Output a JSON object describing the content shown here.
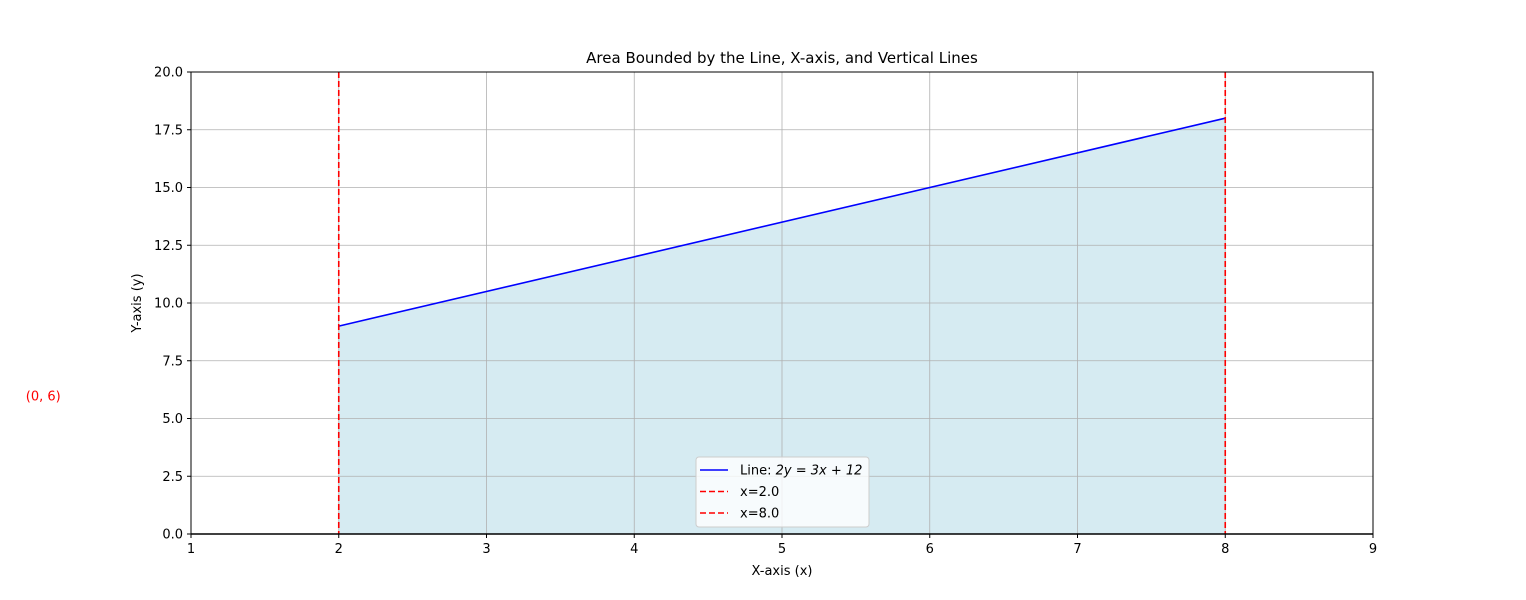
{
  "chart_data": {
    "type": "line",
    "title": "Area Bounded by the Line, X-axis, and Vertical Lines",
    "xlabel": "X-axis (x)",
    "ylabel": "Y-axis (y)",
    "xlim": [
      1,
      9
    ],
    "ylim": [
      0,
      20
    ],
    "xticks": [
      1,
      2,
      3,
      4,
      5,
      6,
      7,
      8,
      9
    ],
    "yticks": [
      0.0,
      2.5,
      5.0,
      7.5,
      10.0,
      12.5,
      15.0,
      17.5,
      20.0
    ],
    "ytick_labels": [
      "0.0",
      "2.5",
      "5.0",
      "7.5",
      "10.0",
      "12.5",
      "15.0",
      "17.5",
      "20.0"
    ],
    "grid": true,
    "legend_placement": "lower-center",
    "series": [
      {
        "name_prefix": "Line: ",
        "name_eq": "2y = 3x + 12",
        "kind": "line",
        "color": "#0000ff",
        "x": [
          2,
          8
        ],
        "y": [
          9,
          18
        ]
      },
      {
        "name": "x=2.0",
        "kind": "vline",
        "color": "#ff0000",
        "x": 2.0
      },
      {
        "name": "x=8.0",
        "kind": "vline",
        "color": "#ff0000",
        "x": 8.0
      }
    ],
    "fill": {
      "x": [
        2,
        8
      ],
      "y": [
        9,
        18
      ],
      "color": "#add8e6"
    },
    "annotations": [
      {
        "text": "(0, 6)",
        "x": 0,
        "y": 6,
        "color": "#ff0000"
      }
    ]
  }
}
